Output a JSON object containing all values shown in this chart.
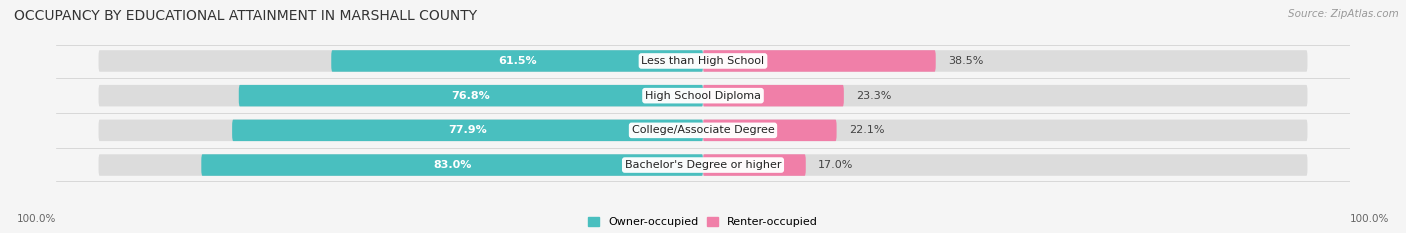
{
  "title": "OCCUPANCY BY EDUCATIONAL ATTAINMENT IN MARSHALL COUNTY",
  "source": "Source: ZipAtlas.com",
  "categories": [
    "Less than High School",
    "High School Diploma",
    "College/Associate Degree",
    "Bachelor's Degree or higher"
  ],
  "owner_values": [
    61.5,
    76.8,
    77.9,
    83.0
  ],
  "renter_values": [
    38.5,
    23.3,
    22.1,
    17.0
  ],
  "owner_color": "#49bfbf",
  "renter_color": "#f07fa8",
  "background_color": "#f5f5f5",
  "bar_bg_color": "#dcdcdc",
  "title_fontsize": 10,
  "source_fontsize": 7.5,
  "label_fontsize": 8,
  "value_fontsize": 8,
  "axis_label_left": "100.0%",
  "axis_label_right": "100.0%",
  "legend_owner": "Owner-occupied",
  "legend_renter": "Renter-occupied"
}
